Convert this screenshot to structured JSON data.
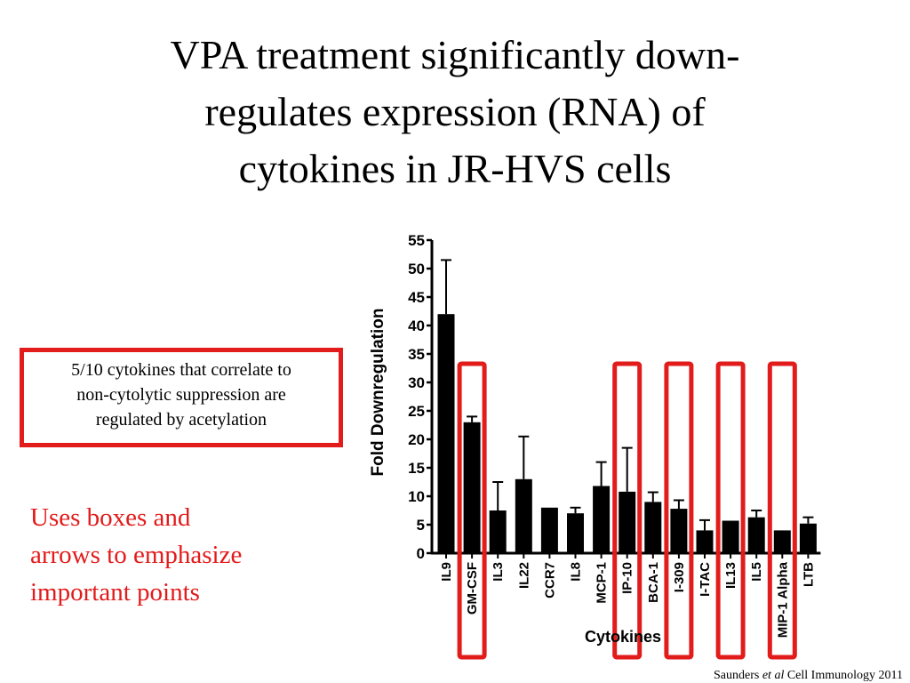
{
  "slide": {
    "title_lines": [
      "VPA treatment significantly down-",
      "regulates expression (RNA) of",
      "cytokines in JR-HVS cells"
    ],
    "callout_lines": [
      "5/10 cytokines that correlate to",
      "non-cytolytic suppression are",
      "regulated by acetylation"
    ],
    "note_lines": [
      "Uses boxes and",
      "arrows to emphasize",
      "important points"
    ],
    "citation_pre": "Saunders ",
    "citation_italic": "et al",
    "citation_post": " Cell Immunology 2011",
    "colors": {
      "accent_red": "#e21b1b",
      "bar": "#000000"
    }
  },
  "chart_data": {
    "type": "bar",
    "categories": [
      "IL9",
      "GM-CSF",
      "IL3",
      "IL22",
      "CCR7",
      "IL8",
      "MCP-1",
      "IP-10",
      "BCA-1",
      "I-309",
      "I-TAC",
      "IL13",
      "IL5",
      "MIP-1 Alpha",
      "LTB"
    ],
    "values": [
      42,
      23,
      7.5,
      13,
      8,
      7,
      11.8,
      10.8,
      9,
      7.8,
      4,
      5.7,
      6.3,
      4,
      5.2
    ],
    "error_upper": [
      51.5,
      24,
      12.5,
      20.5,
      8,
      8,
      16,
      18.5,
      10.7,
      9.3,
      5.8,
      5.7,
      7.5,
      4,
      6.3
    ],
    "highlighted": [
      "GM-CSF",
      "IP-10",
      "I-309",
      "IL13",
      "MIP-1 Alpha"
    ],
    "ylabel": "Fold Downregulation",
    "xlabel": "Cytokines",
    "ylim": [
      0,
      55
    ],
    "yticks": [
      0,
      5,
      10,
      15,
      20,
      25,
      30,
      35,
      40,
      45,
      50,
      55
    ]
  }
}
